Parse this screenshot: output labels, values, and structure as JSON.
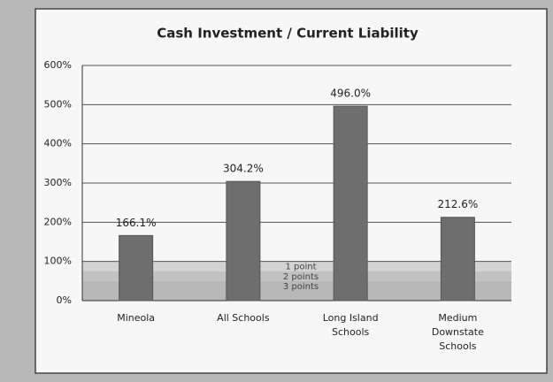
{
  "chart_data": {
    "type": "bar",
    "title": "Cash Investment / Current Liability",
    "categories": [
      "Mineola",
      "All Schools",
      "Long Island Schools",
      "Medium Downstate Schools"
    ],
    "values": [
      166.1,
      304.2,
      496.0,
      212.6
    ],
    "value_labels": [
      "166.1%",
      "304.2%",
      "496.0%",
      "212.6%"
    ],
    "color": "#6e6e6e",
    "ylim": [
      0,
      600
    ],
    "yticks": [
      {
        "value": 0,
        "label": "0%"
      },
      {
        "value": 100,
        "label": "100%"
      },
      {
        "value": 200,
        "label": "200%"
      },
      {
        "value": 300,
        "label": "300%"
      },
      {
        "value": 400,
        "label": "400%"
      },
      {
        "value": 500,
        "label": "500%"
      },
      {
        "value": 600,
        "label": "600%"
      }
    ],
    "grid": true,
    "bands": [
      {
        "label": "1 point",
        "from": 75,
        "to": 100,
        "color": "#c9c9c9"
      },
      {
        "label": "2 points",
        "from": 50,
        "to": 75,
        "color": "#b4b4b4"
      },
      {
        "label": "3 points",
        "from": 0,
        "to": 50,
        "color": "#a8a8a8"
      }
    ]
  }
}
